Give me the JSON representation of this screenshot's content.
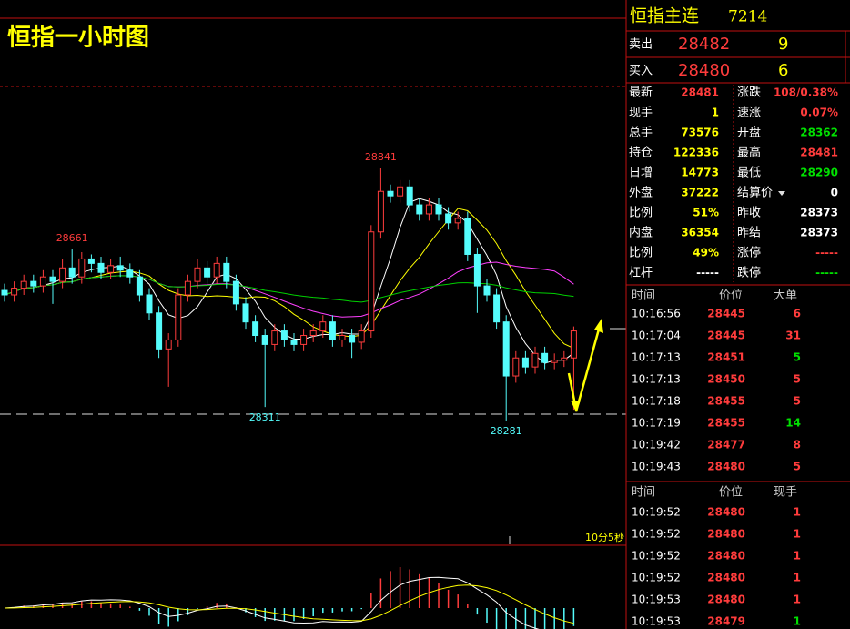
{
  "header": {
    "title": "恒指主连",
    "code": "7214"
  },
  "order_book": [
    {
      "label": "卖出",
      "price": "28482",
      "volume": "9"
    },
    {
      "label": "买入",
      "price": "28480",
      "volume": "6"
    }
  ],
  "stats": [
    {
      "label": "最新",
      "value": "28481",
      "value_color": "#ff3c3c",
      "label2": "涨跌",
      "value2": "108/0.38%",
      "value2_color": "#ff3c3c"
    },
    {
      "label": "现手",
      "value": "1",
      "value_color": "#ffff00",
      "label2": "速涨",
      "value2": "0.07%",
      "value2_color": "#ff3c3c"
    },
    {
      "label": "总手",
      "value": "73576",
      "value_color": "#ffff00",
      "label2": "开盘",
      "value2": "28362",
      "value2_color": "#00e000"
    },
    {
      "label": "持仓",
      "value": "122336",
      "value_color": "#ffff00",
      "label2": "最高",
      "value2": "28481",
      "value2_color": "#ff3c3c"
    },
    {
      "label": "日增",
      "value": "14773",
      "value_color": "#ffff00",
      "label2": "最低",
      "value2": "28290",
      "value2_color": "#00e000"
    },
    {
      "label": "外盘",
      "value": "37222",
      "value_color": "#ffff00",
      "label2": "结算价",
      "value2": "0",
      "value2_color": "#ffffff"
    },
    {
      "label": "比例",
      "value": "51%",
      "value_color": "#ffff00",
      "label2": "昨收",
      "value2": "28373",
      "value2_color": "#ffffff"
    },
    {
      "label": "内盘",
      "value": "36354",
      "value_color": "#ffff00",
      "label2": "昨结",
      "value2": "28373",
      "value2_color": "#ffffff"
    },
    {
      "label": "比例",
      "value": "49%",
      "value_color": "#ffff00",
      "label2": "涨停",
      "value2": "-----",
      "value2_color": "#ff3c3c"
    },
    {
      "label": "杠杆",
      "value": "-----",
      "value_color": "#ffffff",
      "label2": "跌停",
      "value2": "-----",
      "value2_color": "#00e000"
    }
  ],
  "trades_large": {
    "columns": [
      "时间",
      "价位",
      "大单"
    ],
    "rows": [
      {
        "time": "10:16:56",
        "price": "28445",
        "volume": "6",
        "color": "#ff3c3c"
      },
      {
        "time": "10:17:04",
        "price": "28445",
        "volume": "31",
        "color": "#ff3c3c"
      },
      {
        "time": "10:17:13",
        "price": "28451",
        "volume": "5",
        "color": "#00e000"
      },
      {
        "time": "10:17:13",
        "price": "28450",
        "volume": "5",
        "color": "#ff3c3c"
      },
      {
        "time": "10:17:18",
        "price": "28455",
        "volume": "5",
        "color": "#ff3c3c"
      },
      {
        "time": "10:17:19",
        "price": "28455",
        "volume": "14",
        "color": "#00e000"
      },
      {
        "time": "10:19:42",
        "price": "28477",
        "volume": "8",
        "color": "#ff3c3c"
      },
      {
        "time": "10:19:43",
        "price": "28480",
        "volume": "5",
        "color": "#ff3c3c"
      }
    ]
  },
  "trades": {
    "columns": [
      "时间",
      "价位",
      "现手"
    ],
    "rows": [
      {
        "time": "10:19:52",
        "price": "28480",
        "volume": "1",
        "color": "#ff3c3c"
      },
      {
        "time": "10:19:52",
        "price": "28480",
        "volume": "1",
        "color": "#ff3c3c"
      },
      {
        "time": "10:19:52",
        "price": "28480",
        "volume": "1",
        "color": "#ff3c3c"
      },
      {
        "time": "10:19:52",
        "price": "28480",
        "volume": "1",
        "color": "#ff3c3c"
      },
      {
        "time": "10:19:53",
        "price": "28480",
        "volume": "1",
        "color": "#ff3c3c"
      },
      {
        "time": "10:19:53",
        "price": "28479",
        "volume": "1",
        "color": "#00e000"
      }
    ]
  },
  "chart": {
    "type": "candlestick",
    "title": "恒指一小时图",
    "timer": "10分5秒",
    "up_color": "#ff3c3c",
    "down_color": "#54fcfc",
    "open": [
      28570,
      28560,
      28575,
      28590,
      28580,
      28600,
      28590,
      28620,
      28600,
      28640,
      28630,
      28610,
      28625,
      28615,
      28600,
      28560,
      28520,
      28440,
      28460,
      28560,
      28590,
      28620,
      28600,
      28630,
      28590,
      28540,
      28500,
      28470,
      28450,
      28480,
      28460,
      28450,
      28470,
      28480,
      28500,
      28460,
      28470,
      28455,
      28480,
      28700,
      28790,
      28780,
      28800,
      28760,
      28740,
      28760,
      28740,
      28720,
      28730,
      28650,
      28580,
      28560,
      28500,
      28380,
      28420,
      28400,
      28430,
      28410,
      28415,
      28420
    ],
    "high": [
      28585,
      28590,
      28605,
      28605,
      28615,
      28615,
      28640,
      28661,
      28655,
      28650,
      28645,
      28640,
      28645,
      28630,
      28615,
      28575,
      28535,
      28475,
      28575,
      28605,
      28640,
      28635,
      28645,
      28645,
      28605,
      28555,
      28515,
      28485,
      28495,
      28495,
      28475,
      28485,
      28495,
      28515,
      28515,
      28485,
      28485,
      28495,
      28715,
      28841,
      28805,
      28815,
      28815,
      28775,
      28775,
      28775,
      28755,
      28745,
      28745,
      28665,
      28595,
      28575,
      28515,
      28435,
      28435,
      28445,
      28445,
      28430,
      28435,
      28490
    ],
    "low": [
      28545,
      28545,
      28560,
      28565,
      28565,
      28540,
      28575,
      28585,
      28585,
      28610,
      28595,
      28595,
      28600,
      28585,
      28545,
      28505,
      28420,
      28356,
      28445,
      28545,
      28575,
      28585,
      28585,
      28575,
      28525,
      28485,
      28455,
      28311,
      28435,
      28445,
      28435,
      28435,
      28455,
      28465,
      28445,
      28445,
      28420,
      28440,
      28465,
      28685,
      28765,
      28765,
      28745,
      28725,
      28725,
      28725,
      28705,
      28705,
      28635,
      28520,
      28545,
      28485,
      28281,
      28365,
      28385,
      28385,
      28395,
      28395,
      28400,
      28305
    ],
    "close": [
      28560,
      28575,
      28590,
      28580,
      28600,
      28590,
      28620,
      28600,
      28640,
      28630,
      28610,
      28625,
      28615,
      28600,
      28560,
      28520,
      28440,
      28460,
      28560,
      28590,
      28620,
      28600,
      28630,
      28590,
      28540,
      28500,
      28470,
      28450,
      28480,
      28460,
      28450,
      28470,
      28480,
      28500,
      28460,
      28470,
      28455,
      28480,
      28700,
      28790,
      28780,
      28800,
      28760,
      28740,
      28760,
      28740,
      28720,
      28730,
      28650,
      28580,
      28560,
      28500,
      28380,
      28420,
      28400,
      28430,
      28410,
      28415,
      28420,
      28480
    ],
    "moving_averages": [
      {
        "period": 5,
        "color": "#ffffff"
      },
      {
        "period": 10,
        "color": "#ffff00"
      },
      {
        "period": 20,
        "color": "#ff40ff"
      },
      {
        "period": 40,
        "color": "#00d000"
      }
    ]
  }
}
